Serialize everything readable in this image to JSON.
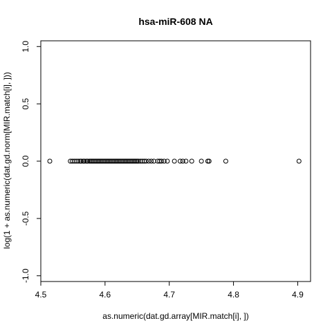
{
  "chart_data": {
    "type": "scatter",
    "title": "hsa-miR-608   NA",
    "xlabel": "as.numeric(dat.gd.array[MIR.match[i], ])",
    "ylabel": "log(1 + as.numeric(dat.gd.norm[MIR.match[i], ]))",
    "xlim": [
      4.5,
      4.92
    ],
    "ylim": [
      -1.05,
      1.05
    ],
    "x_ticks": [
      4.5,
      4.6,
      4.7,
      4.8,
      4.9
    ],
    "x_tick_labels": [
      "4.5",
      "4.6",
      "4.7",
      "4.8",
      "4.9"
    ],
    "y_ticks": [
      -1.0,
      -0.5,
      0.0,
      0.5,
      1.0
    ],
    "y_tick_labels": [
      "-1.0",
      "-0.5",
      "0.0",
      "0.5",
      "1.0"
    ],
    "marker": "open-circle",
    "series": [
      {
        "name": "points",
        "x": [
          4.514,
          4.546,
          4.549,
          4.552,
          4.555,
          4.558,
          4.561,
          4.563,
          4.566,
          4.568,
          4.571,
          4.573,
          4.576,
          4.578,
          4.58,
          4.582,
          4.584,
          4.586,
          4.588,
          4.59,
          4.592,
          4.594,
          4.596,
          4.598,
          4.6,
          4.602,
          4.604,
          4.606,
          4.608,
          4.61,
          4.612,
          4.614,
          4.616,
          4.618,
          4.62,
          4.622,
          4.624,
          4.626,
          4.628,
          4.63,
          4.632,
          4.634,
          4.636,
          4.638,
          4.64,
          4.642,
          4.644,
          4.646,
          4.648,
          4.65,
          4.652,
          4.655,
          4.658,
          4.661,
          4.664,
          4.668,
          4.672,
          4.676,
          4.682,
          4.685,
          4.688,
          4.692,
          4.697,
          4.708,
          4.717,
          4.721,
          4.726,
          4.735,
          4.75,
          4.76,
          4.762,
          4.788,
          4.902
        ],
        "y": [
          0,
          0,
          0,
          0,
          0,
          0,
          0,
          0,
          0,
          0,
          0,
          0,
          0,
          0,
          0,
          0,
          0,
          0,
          0,
          0,
          0,
          0,
          0,
          0,
          0,
          0,
          0,
          0,
          0,
          0,
          0,
          0,
          0,
          0,
          0,
          0,
          0,
          0,
          0,
          0,
          0,
          0,
          0,
          0,
          0,
          0,
          0,
          0,
          0,
          0,
          0,
          0,
          0,
          0,
          0,
          0,
          0,
          0,
          0,
          0,
          0,
          0,
          0,
          0,
          0,
          0,
          0,
          0,
          0,
          0,
          0,
          0,
          0
        ]
      }
    ]
  }
}
